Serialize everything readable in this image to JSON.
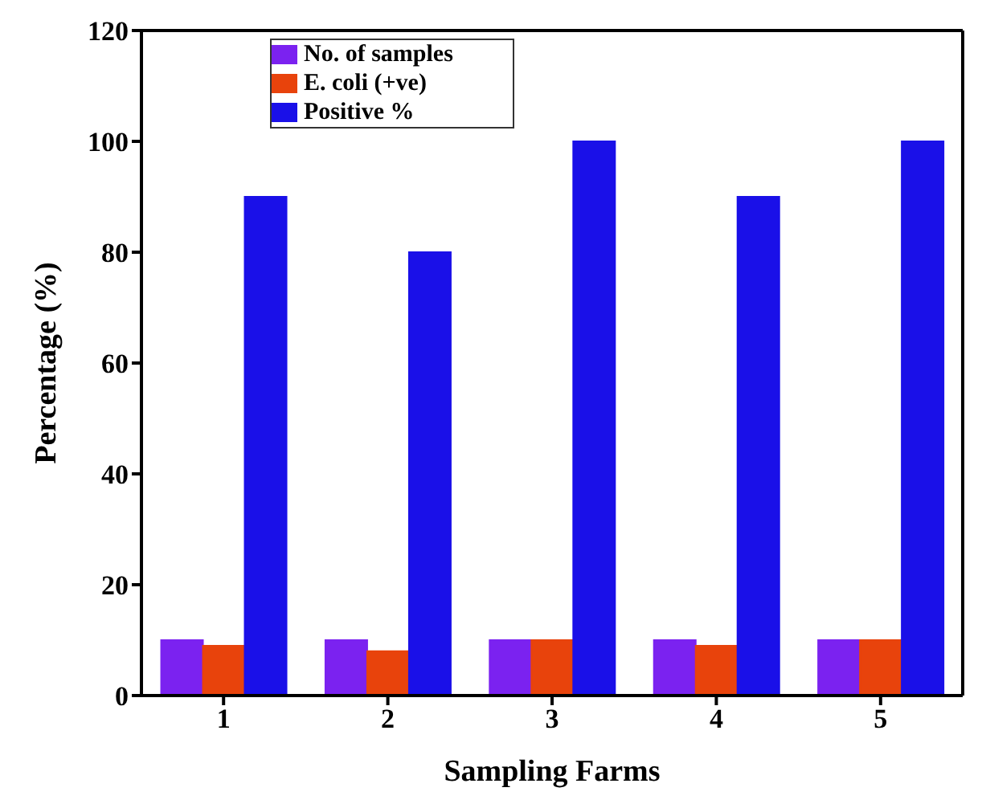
{
  "chart_data": {
    "type": "bar",
    "xlabel": "Sampling Farms",
    "ylabel": "Percentage (%)",
    "categories": [
      "1",
      "2",
      "3",
      "4",
      "5"
    ],
    "series": [
      {
        "name": "No. of samples",
        "color": "#7b22f0",
        "values": [
          10,
          10,
          10,
          10,
          10
        ]
      },
      {
        "name": "E. coli (+ve)",
        "color": "#e8430c",
        "values": [
          9,
          8,
          10,
          9,
          10
        ]
      },
      {
        "name": "Positive %",
        "color": "#1a10e8",
        "values": [
          90,
          80,
          100,
          90,
          100
        ]
      }
    ],
    "ylim": [
      0,
      120
    ],
    "yticks": [
      0,
      20,
      40,
      60,
      80,
      100,
      120
    ],
    "grid": false,
    "legend": "top left"
  }
}
